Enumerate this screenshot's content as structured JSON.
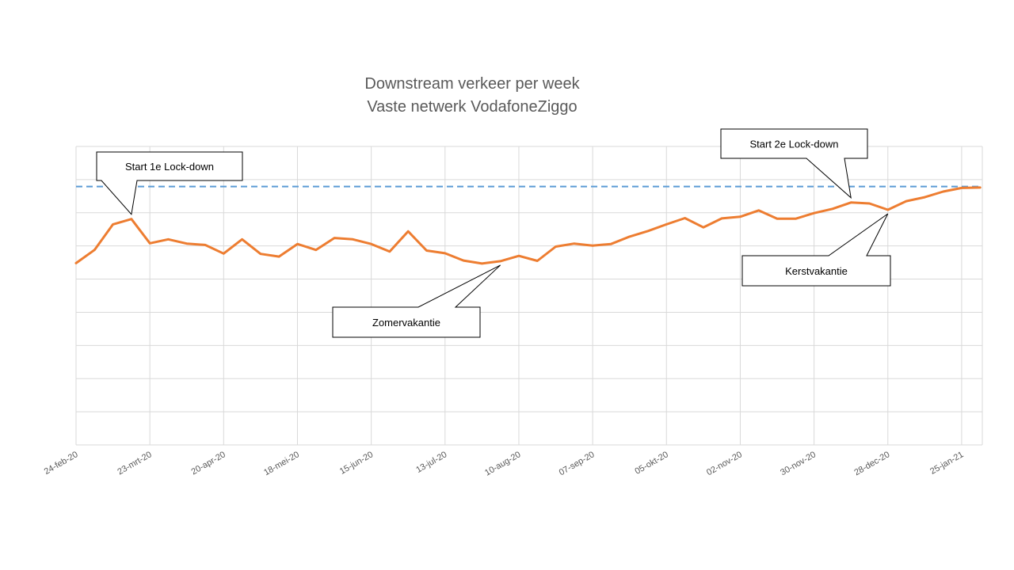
{
  "chart_data": {
    "type": "line",
    "title": "Downstream verkeer per week",
    "subtitle": "Vaste netwerk VodafoneZiggo",
    "xlabel": "",
    "ylabel": "",
    "x_axis": {
      "start_date": "24-feb-20",
      "tick_labels": [
        "24-feb-20",
        "23-mrt-20",
        "20-apr-20",
        "18-mei-20",
        "15-jun-20",
        "13-jul-20",
        "10-aug-20",
        "07-sep-20",
        "05-okt-20",
        "02-nov-20",
        "30-nov-20",
        "28-dec-20",
        "25-jan-21"
      ]
    },
    "y_axis": {
      "range": [
        0,
        9
      ],
      "tick_labels_visible": false
    },
    "grid": {
      "vertical": true,
      "horizontal": true
    },
    "series": [
      {
        "name": "",
        "color": "#ED7D31",
        "x": [
          "24-feb-20",
          "02-mrt-20",
          "09-mrt-20",
          "16-mrt-20",
          "23-mrt-20",
          "30-mrt-20",
          "06-apr-20",
          "13-apr-20",
          "20-apr-20",
          "27-apr-20",
          "04-mei-20",
          "11-mei-20",
          "18-mei-20",
          "25-mei-20",
          "01-jun-20",
          "08-jun-20",
          "15-jun-20",
          "22-jun-20",
          "29-jun-20",
          "06-jul-20",
          "13-jul-20",
          "20-jul-20",
          "27-jul-20",
          "03-aug-20",
          "10-aug-20",
          "17-aug-20",
          "24-aug-20",
          "31-aug-20",
          "07-sep-20",
          "14-sep-20",
          "21-sep-20",
          "28-sep-20",
          "05-okt-20",
          "12-okt-20",
          "19-okt-20",
          "26-okt-20",
          "02-nov-20",
          "09-nov-20",
          "16-nov-20",
          "23-nov-20",
          "30-nov-20",
          "07-dec-20",
          "14-dec-20",
          "21-dec-20",
          "28-dec-20",
          "04-jan-21",
          "11-jan-21",
          "18-jan-21",
          "25-jan-21",
          "01-feb-21"
        ],
        "values": [
          5.48,
          5.88,
          6.65,
          6.81,
          6.08,
          6.2,
          6.07,
          6.03,
          5.77,
          6.2,
          5.76,
          5.68,
          6.06,
          5.88,
          6.24,
          6.2,
          6.06,
          5.83,
          6.44,
          5.86,
          5.78,
          5.56,
          5.47,
          5.54,
          5.7,
          5.55,
          5.98,
          6.07,
          6.01,
          6.06,
          6.28,
          6.45,
          6.65,
          6.84,
          6.56,
          6.83,
          6.88,
          7.07,
          6.82,
          6.82,
          6.99,
          7.12,
          7.31,
          7.28,
          7.09,
          7.35,
          7.47,
          7.64,
          7.75,
          7.76
        ]
      },
      {
        "name": "",
        "color": "#5B9BD5",
        "dashed": true,
        "values": [
          7.79
        ]
      }
    ],
    "annotations": [
      {
        "text": "Start  1e Lock-down",
        "points_to": "16-mrt-20"
      },
      {
        "text": "Zomervakantie",
        "points_to": "03-aug-20"
      },
      {
        "text": "Start  2e Lock-down",
        "points_to": "14-dec-20"
      },
      {
        "text": "Kerstvakantie",
        "points_to": "28-dec-20"
      }
    ]
  }
}
